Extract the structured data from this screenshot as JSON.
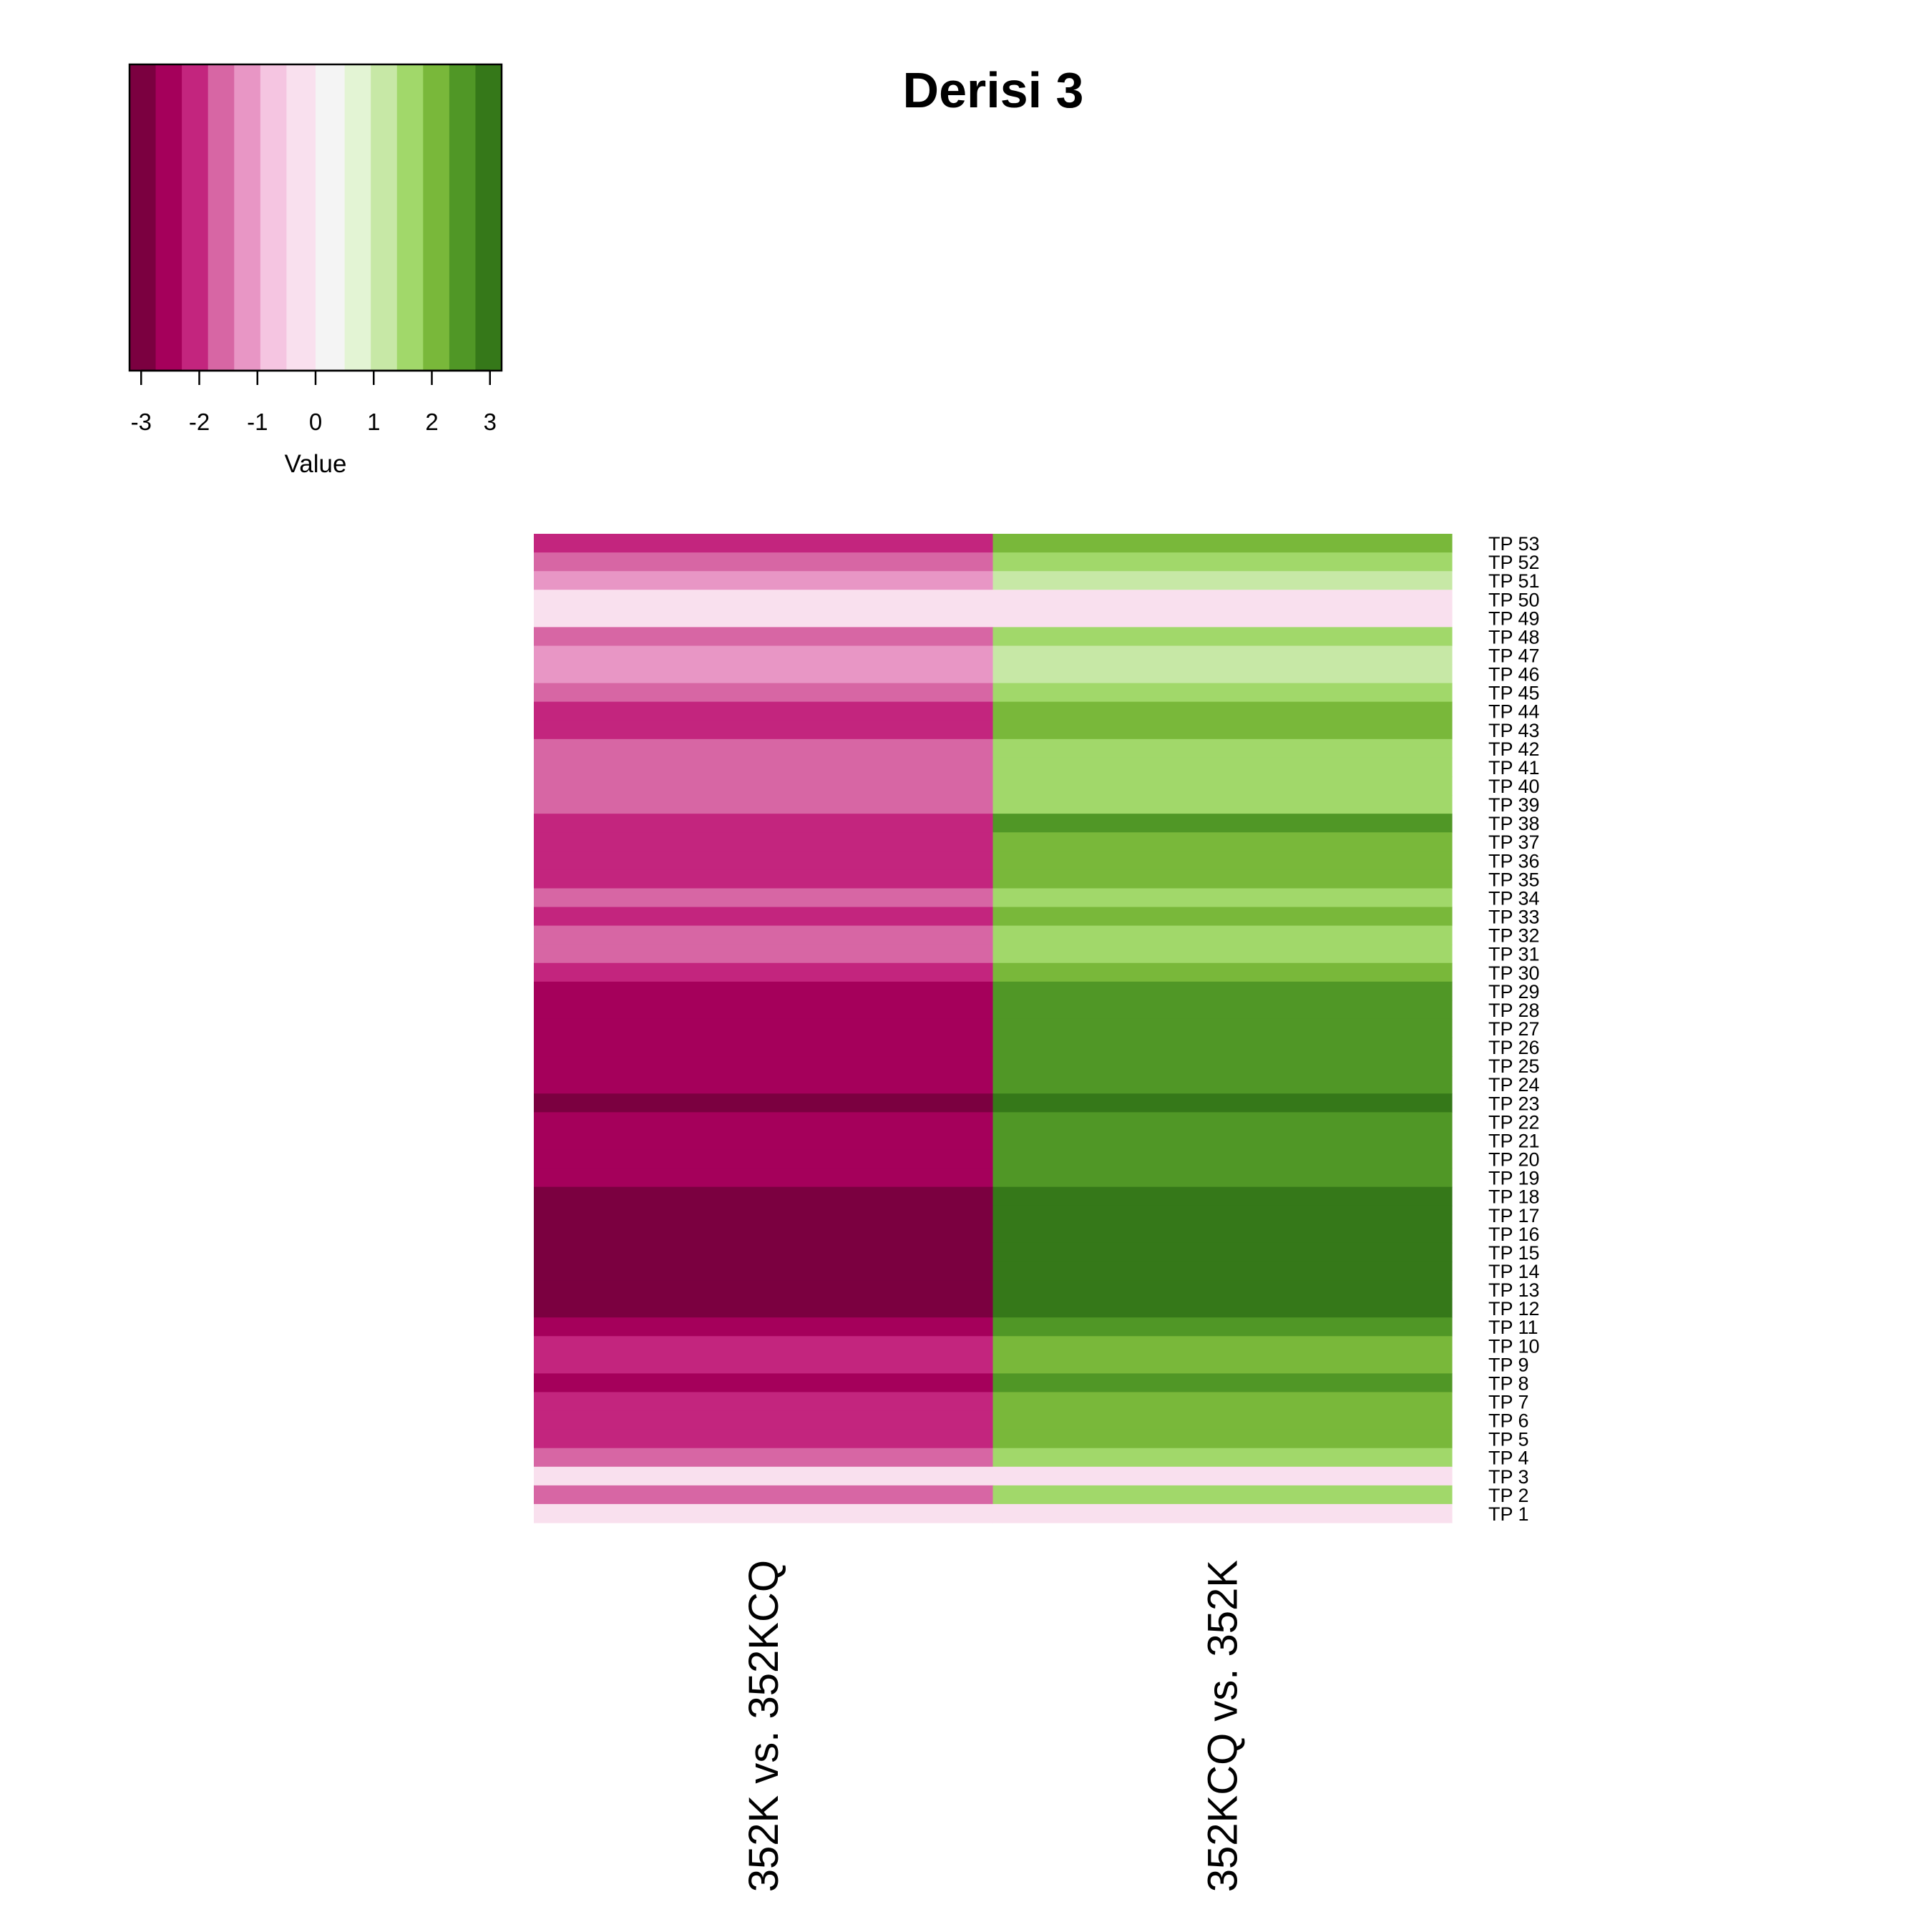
{
  "chart_data": {
    "type": "heatmap",
    "title": "Derisi 3",
    "columns": [
      "352K vs. 352KCQ",
      "352KCQ vs. 352K"
    ],
    "rows": [
      "TP 53",
      "TP 52",
      "TP 51",
      "TP 50",
      "TP 49",
      "TP 48",
      "TP 47",
      "TP 46",
      "TP 45",
      "TP 44",
      "TP 43",
      "TP 42",
      "TP 41",
      "TP 40",
      "TP 39",
      "TP 38",
      "TP 37",
      "TP 36",
      "TP 35",
      "TP 34",
      "TP 33",
      "TP 32",
      "TP 31",
      "TP 30",
      "TP 29",
      "TP 28",
      "TP 27",
      "TP 26",
      "TP 25",
      "TP 24",
      "TP 23",
      "TP 22",
      "TP 21",
      "TP 20",
      "TP 19",
      "TP 18",
      "TP 17",
      "TP 16",
      "TP 15",
      "TP 14",
      "TP 13",
      "TP 12",
      "TP 11",
      "TP 10",
      "TP 9",
      "TP 8",
      "TP 7",
      "TP 6",
      "TP 5",
      "TP 4",
      "TP 3",
      "TP 2",
      "TP 1"
    ],
    "values": [
      [
        -2,
        2
      ],
      [
        -1.5,
        1.5
      ],
      [
        -1,
        1
      ],
      [
        0,
        0
      ],
      [
        0,
        0
      ],
      [
        -1.5,
        1.5
      ],
      [
        -1,
        1
      ],
      [
        -1,
        1
      ],
      [
        -1.5,
        1.5
      ],
      [
        -2,
        2
      ],
      [
        -2,
        2
      ],
      [
        -1.5,
        1.5
      ],
      [
        -1.5,
        1.5
      ],
      [
        -1.5,
        1.5
      ],
      [
        -1.5,
        1.5
      ],
      [
        -2,
        2.5
      ],
      [
        -2,
        2
      ],
      [
        -2,
        2
      ],
      [
        -2,
        2
      ],
      [
        -1.5,
        1.5
      ],
      [
        -2,
        2
      ],
      [
        -1.5,
        1.5
      ],
      [
        -1.5,
        1.5
      ],
      [
        -2,
        2
      ],
      [
        -2.5,
        2.5
      ],
      [
        -2.5,
        2.5
      ],
      [
        -2.5,
        2.5
      ],
      [
        -2.5,
        2.5
      ],
      [
        -2.5,
        2.5
      ],
      [
        -2.5,
        2.5
      ],
      [
        -3,
        3
      ],
      [
        -2.5,
        2.5
      ],
      [
        -2.5,
        2.5
      ],
      [
        -2.5,
        2.5
      ],
      [
        -2.5,
        2.5
      ],
      [
        -3,
        3
      ],
      [
        -3,
        3
      ],
      [
        -3,
        3
      ],
      [
        -3,
        3
      ],
      [
        -3,
        3
      ],
      [
        -3,
        3
      ],
      [
        -3,
        3
      ],
      [
        -2.5,
        2.5
      ],
      [
        -2,
        2
      ],
      [
        -2,
        2
      ],
      [
        -2.5,
        2.5
      ],
      [
        -2,
        2
      ],
      [
        -2,
        2
      ],
      [
        -2,
        2
      ],
      [
        -1.5,
        1.5
      ],
      [
        0,
        0
      ],
      [
        -1.5,
        1.5
      ],
      [
        0,
        0
      ]
    ],
    "color_key": {
      "breaks": [
        -3.2,
        -2.75,
        -2.3,
        -1.85,
        -1.4,
        -0.95,
        -0.5,
        0,
        0.5,
        0.95,
        1.4,
        1.85,
        2.3,
        2.75,
        3.2
      ],
      "colors": [
        "#7b0040",
        "#a5005b",
        "#c3257e",
        "#d766a4",
        "#e896c5",
        "#f5c5e1",
        "#f9e0ee",
        "#f4f4f4",
        "#e3f4d4",
        "#c7e8a6",
        "#a1d86a",
        "#79b83a",
        "#509726",
        "#357819",
        "#205518"
      ],
      "ticks": [
        -3,
        -2,
        -1,
        0,
        1,
        2,
        3
      ],
      "tick_labels": [
        "-3",
        "-2",
        "-1",
        "0",
        "1",
        "2",
        "3"
      ],
      "xlabel": "Value",
      "xlim": [
        -3.2,
        3.2
      ]
    }
  }
}
